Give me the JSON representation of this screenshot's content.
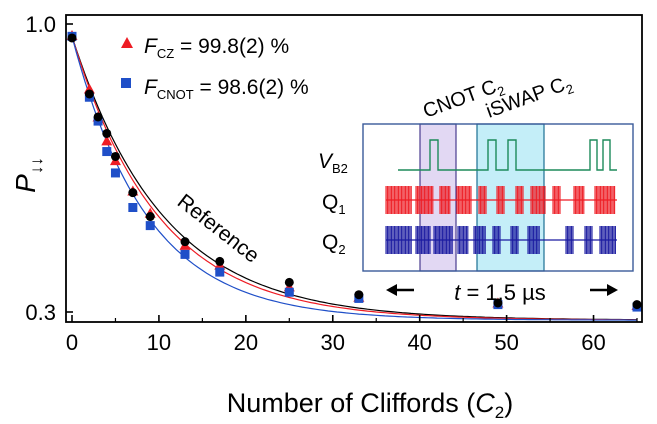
{
  "chart_data": {
    "type": "scatter",
    "xlabel_main": "Number of Cliffords (",
    "xlabel_var": "C",
    "xlabel_sub": "2",
    "xlabel_close": ")",
    "ylabel_main": "P",
    "ylabel_sub": "↓↓",
    "xlim": [
      0,
      66
    ],
    "ylim": [
      0.3,
      1.0
    ],
    "x_ticks": [
      0,
      10,
      20,
      30,
      40,
      50,
      60
    ],
    "x_tick_labels": [
      "0",
      "10",
      "20",
      "30",
      "40",
      "50",
      "60"
    ],
    "y_ticks": [
      0.3,
      1.0
    ],
    "y_tick_labels": [
      "0.3",
      "1.0"
    ],
    "series": [
      {
        "name_prefix": "F",
        "name_sub": "CZ",
        "name_value": " = 99.8(2) %",
        "marker": "triangle",
        "color": "#ee1c24",
        "x": [
          0,
          2,
          3,
          4,
          5,
          7,
          9,
          13,
          17,
          25,
          33,
          49,
          65
        ],
        "y": [
          0.972,
          0.842,
          0.774,
          0.716,
          0.668,
          0.594,
          0.54,
          0.462,
          0.414,
          0.361,
          0.336,
          0.322,
          0.316
        ]
      },
      {
        "name_prefix": "F",
        "name_sub": "CNOT",
        "name_value": " = 98.6(2) %",
        "marker": "square",
        "color": "#1f4fc8",
        "x": [
          0,
          2,
          3,
          4,
          5,
          7,
          9,
          13,
          17,
          25,
          33,
          49,
          65
        ],
        "y": [
          0.97,
          0.822,
          0.764,
          0.69,
          0.638,
          0.554,
          0.51,
          0.44,
          0.397,
          0.348,
          0.333,
          0.318,
          0.312
        ]
      },
      {
        "name": "Reference",
        "marker": "circle",
        "color": "#000000",
        "x": [
          0,
          2,
          3,
          4,
          5,
          7,
          9,
          13,
          17,
          25,
          33,
          49,
          65
        ],
        "y": [
          0.966,
          0.83,
          0.774,
          0.734,
          0.678,
          0.59,
          0.532,
          0.471,
          0.423,
          0.372,
          0.342,
          0.322,
          0.318
        ]
      }
    ],
    "fits": [
      {
        "color": "#000000",
        "a": 0.69,
        "b": 0.28,
        "rate": 0.0955
      },
      {
        "color": "#ee1c24",
        "a": 0.69,
        "b": 0.28,
        "rate": 0.101
      },
      {
        "color": "#1f4fc8",
        "a": 0.69,
        "b": 0.28,
        "rate": 0.116
      }
    ],
    "reference_label": "Reference"
  },
  "inset": {
    "label_cnot": "CNOT C",
    "label_cnot_sub": "2",
    "label_iswap": "iSWAP C",
    "label_iswap_sub": "2",
    "row_vb2": "V",
    "row_vb2_sub": "B2",
    "row_q1": "Q",
    "row_q1_sub": "1",
    "row_q2": "Q",
    "row_q2_sub": "2",
    "time_var": "t",
    "time_value": " = 1.5 µs",
    "colors": {
      "frame": "#3a5a99",
      "vb2": "#1d8a5a",
      "q1": "#ee1c24",
      "q2": "#1a1aa0",
      "cnot_bg": "#e2d8f3",
      "iswap_bg": "#c4eef8"
    }
  }
}
